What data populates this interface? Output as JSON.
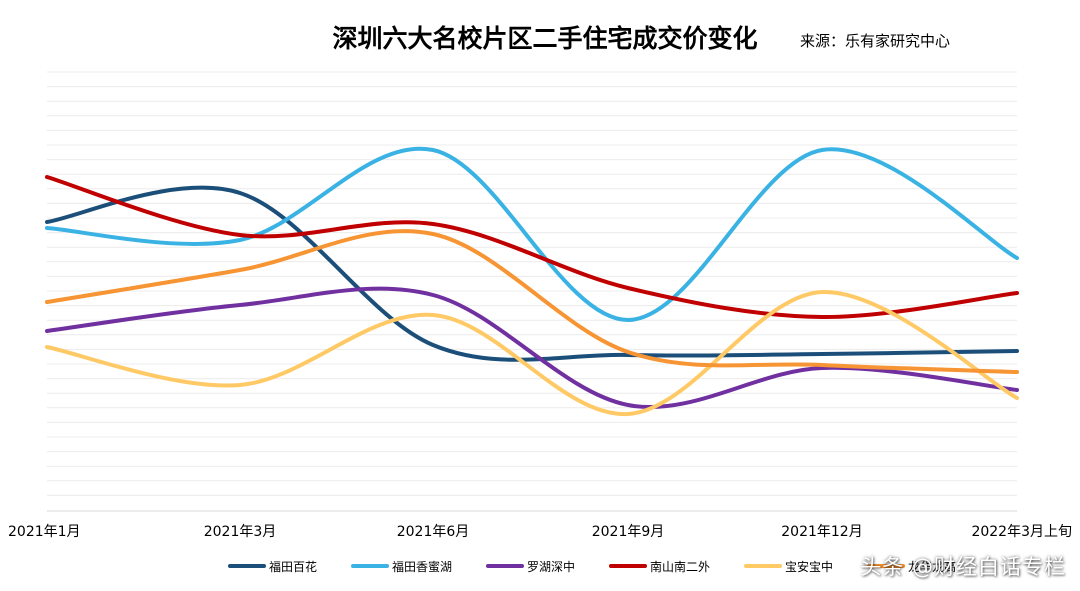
{
  "chart_data": {
    "type": "line",
    "title": "深圳六大名校片区二手住宅成交价变化",
    "subtitle": "来源：乐有家研究中心",
    "categories": [
      "2021年1月",
      "2021年3月",
      "2021年6月",
      "2021年9月",
      "2021年12月",
      "2022年3月上旬"
    ],
    "series": [
      {
        "name": "福田百花",
        "color": "#1b4f7a",
        "values": [
          222,
          193,
          345,
          355,
          354,
          351
        ]
      },
      {
        "name": "福田香蜜湖",
        "color": "#3ab3e4",
        "values": [
          228,
          240,
          150,
          320,
          150,
          258
        ]
      },
      {
        "name": "罗湖深中",
        "color": "#7030a0",
        "values": [
          331,
          305,
          295,
          405,
          368,
          390
        ]
      },
      {
        "name": "南山南二外",
        "color": "#c00000",
        "values": [
          177,
          235,
          224,
          288,
          317,
          293
        ]
      },
      {
        "name": "宝安宝中",
        "color": "#ffc966",
        "values": [
          347,
          385,
          315,
          414,
          292,
          398
        ]
      },
      {
        "name": "龙华龙高",
        "color": "#f79433",
        "values": [
          302,
          270,
          234,
          352,
          365,
          372
        ]
      }
    ],
    "grid": true,
    "legend": "bottom"
  },
  "watermark": "头条 @财经白话专栏"
}
